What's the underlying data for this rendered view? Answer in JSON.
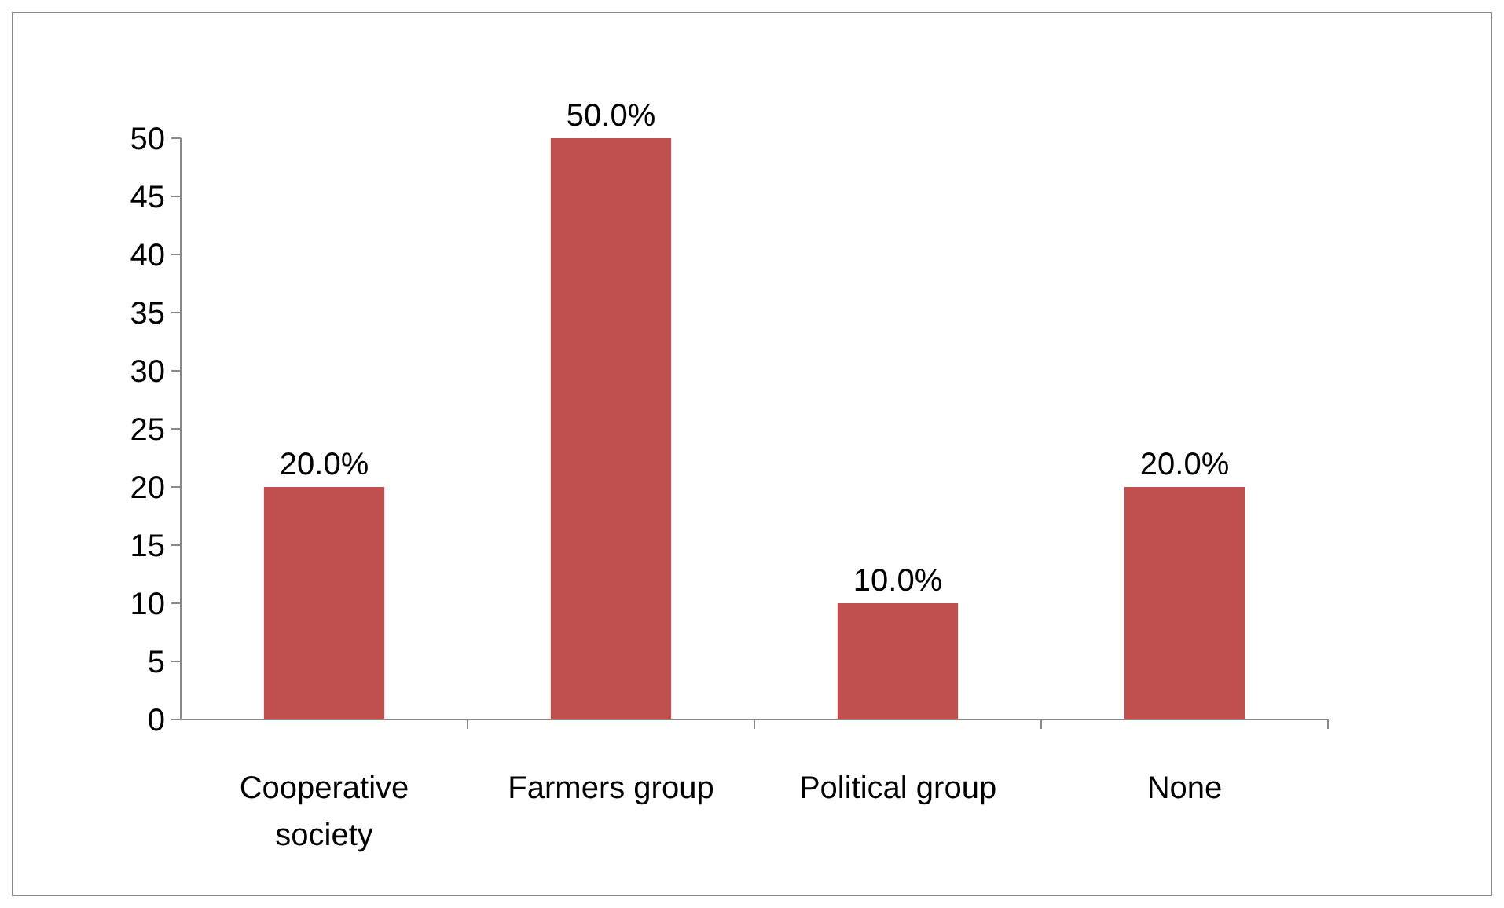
{
  "chart_data": {
    "type": "bar",
    "categories": [
      "Cooperative society",
      "Farmers group",
      "Political group",
      "None"
    ],
    "values": [
      20,
      50,
      10,
      20
    ],
    "color": "#c0504d",
    "value_labels": [
      "20.0%",
      "50.0%",
      "10.0%",
      "20.0%"
    ],
    "ylim": [
      0,
      50
    ],
    "yticks": [
      0,
      5,
      10,
      15,
      20,
      25,
      30,
      35,
      40,
      45,
      50
    ],
    "grid": false
  }
}
